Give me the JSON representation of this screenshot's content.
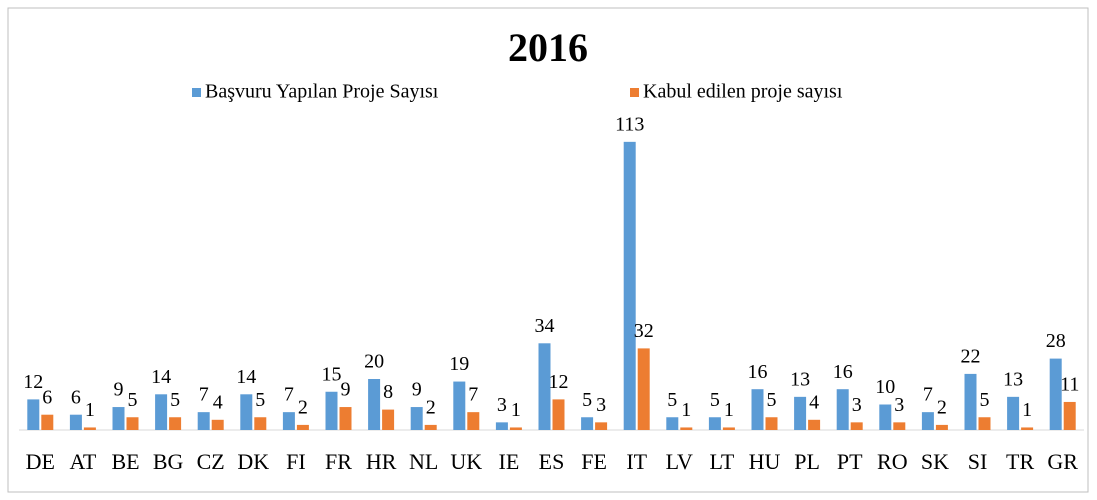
{
  "chart_data": {
    "type": "bar",
    "title": "2016",
    "categories": [
      "DE",
      "AT",
      "BE",
      "BG",
      "CZ",
      "DK",
      "FI",
      "FR",
      "HR",
      "NL",
      "UK",
      "IE",
      "ES",
      "FE",
      "IT",
      "LV",
      "LT",
      "HU",
      "PL",
      "PT",
      "RO",
      "SK",
      "SI",
      "TR",
      "GR"
    ],
    "series": [
      {
        "name": "Başvuru Yapılan Proje Sayısı",
        "color": "#5b9bd5",
        "values": [
          12,
          6,
          9,
          14,
          7,
          14,
          7,
          15,
          20,
          9,
          19,
          3,
          34,
          5,
          113,
          5,
          5,
          16,
          13,
          16,
          10,
          7,
          22,
          13,
          28
        ]
      },
      {
        "name": "Kabul edilen proje sayısı",
        "color": "#ed7d31",
        "values": [
          6,
          1,
          5,
          5,
          4,
          5,
          2,
          9,
          8,
          2,
          7,
          1,
          12,
          3,
          32,
          1,
          1,
          5,
          4,
          3,
          3,
          2,
          5,
          1,
          11
        ]
      }
    ],
    "legend": "top"
  }
}
